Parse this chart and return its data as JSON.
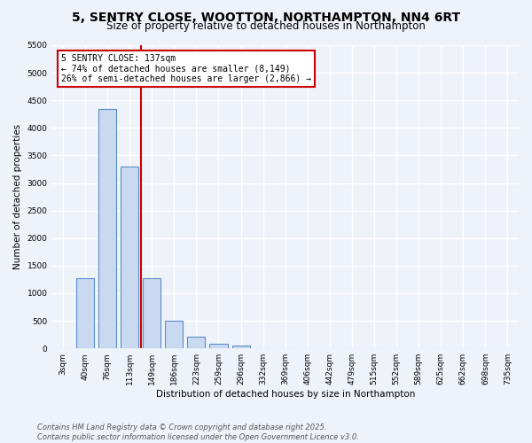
{
  "title": "5, SENTRY CLOSE, WOOTTON, NORTHAMPTON, NN4 6RT",
  "subtitle": "Size of property relative to detached houses in Northampton",
  "xlabel": "Distribution of detached houses by size in Northampton",
  "ylabel": "Number of detached properties",
  "categories": [
    "3sqm",
    "40sqm",
    "76sqm",
    "113sqm",
    "149sqm",
    "186sqm",
    "223sqm",
    "259sqm",
    "296sqm",
    "332sqm",
    "369sqm",
    "406sqm",
    "442sqm",
    "479sqm",
    "515sqm",
    "552sqm",
    "589sqm",
    "625sqm",
    "662sqm",
    "698sqm",
    "735sqm"
  ],
  "values": [
    0,
    1270,
    4350,
    3300,
    1280,
    500,
    220,
    90,
    55,
    0,
    0,
    0,
    0,
    0,
    0,
    0,
    0,
    0,
    0,
    0,
    0
  ],
  "bar_color": "#c9d9f0",
  "bar_edge_color": "#5b8dc8",
  "bar_edge_width": 0.8,
  "property_line_color": "#cc0000",
  "annotation_text": "5 SENTRY CLOSE: 137sqm\n← 74% of detached houses are smaller (8,149)\n26% of semi-detached houses are larger (2,866) →",
  "annotation_box_color": "#cc0000",
  "annotation_text_color": "#000000",
  "ylim": [
    0,
    5500
  ],
  "yticks": [
    0,
    500,
    1000,
    1500,
    2000,
    2500,
    3000,
    3500,
    4000,
    4500,
    5000,
    5500
  ],
  "bg_color": "#eef2f9",
  "grid_color": "#ffffff",
  "footer_line1": "Contains HM Land Registry data © Crown copyright and database right 2025.",
  "footer_line2": "Contains public sector information licensed under the Open Government Licence v3.0.",
  "title_fontsize": 10,
  "subtitle_fontsize": 8.5,
  "axis_label_fontsize": 7.5,
  "tick_fontsize": 6.5,
  "annotation_fontsize": 7,
  "footer_fontsize": 6
}
